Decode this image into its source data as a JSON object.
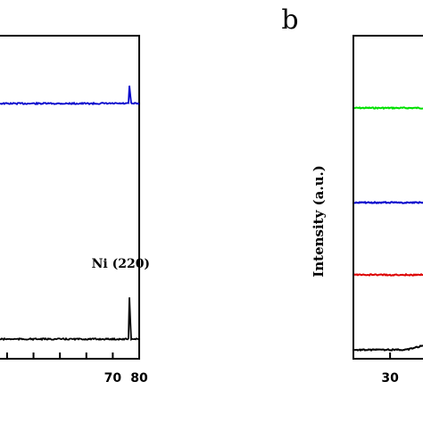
{
  "chart_data": [
    {
      "type": "line",
      "panel": "",
      "title": "",
      "xlabel": "",
      "ylabel": "",
      "xlim": [
        28,
        80
      ],
      "xticks": [
        70,
        80
      ],
      "xtick_labels": [
        "70",
        "80"
      ],
      "annotations": [
        {
          "text": "Ni (220)",
          "x": 76.4
        }
      ],
      "grid": false,
      "series": [
        {
          "color": "#0000cc",
          "peaks": [
            {
              "x": 76.4,
              "height": 0.75
            }
          ],
          "baseline": 1.0
        },
        {
          "color": "#000000",
          "peaks": [
            {
              "x": 76.4,
              "height": 2.0
            }
          ],
          "baseline": 0.0
        }
      ]
    },
    {
      "type": "line",
      "panel": "b",
      "title": "",
      "xlabel": "",
      "ylabel": "Intensity (a.u.)",
      "xlim": [
        26,
        80
      ],
      "xticks": [
        30
      ],
      "xtick_labels": [
        "30"
      ],
      "grid": false,
      "series": [
        {
          "color": "#00e000",
          "baseline": 3.0
        },
        {
          "color": "#0000cc",
          "baseline": 2.0
        },
        {
          "color": "#dd0000",
          "baseline": 1.0
        },
        {
          "color": "#000000",
          "baseline": 0.0
        }
      ]
    }
  ]
}
